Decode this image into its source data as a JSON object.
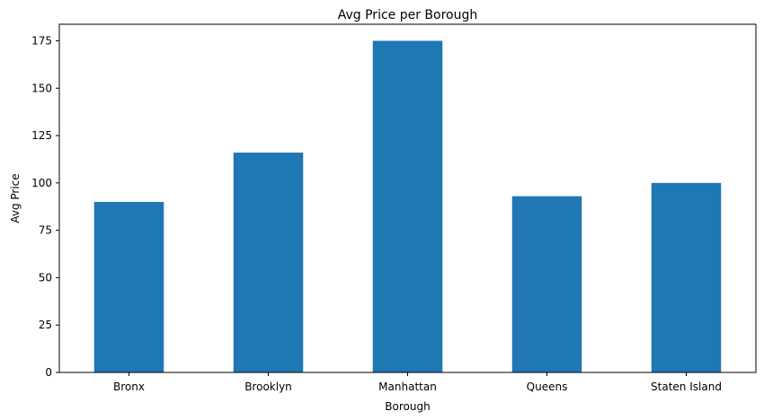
{
  "chart_data": {
    "type": "bar",
    "title": "Avg Price per Borough",
    "xlabel": "Borough",
    "ylabel": "Avg Price",
    "categories": [
      "Bronx",
      "Brooklyn",
      "Manhattan",
      "Queens",
      "Staten Island"
    ],
    "values": [
      90,
      116,
      175,
      93,
      100
    ],
    "ylim": [
      0,
      183.75
    ],
    "yticks": [
      0,
      25,
      50,
      75,
      100,
      125,
      150,
      175
    ],
    "ytick_labels": [
      "0",
      "25",
      "50",
      "75",
      "100",
      "125",
      "150",
      "175"
    ],
    "bar_color": "#1f77b4",
    "grid": false,
    "legend": "none"
  }
}
